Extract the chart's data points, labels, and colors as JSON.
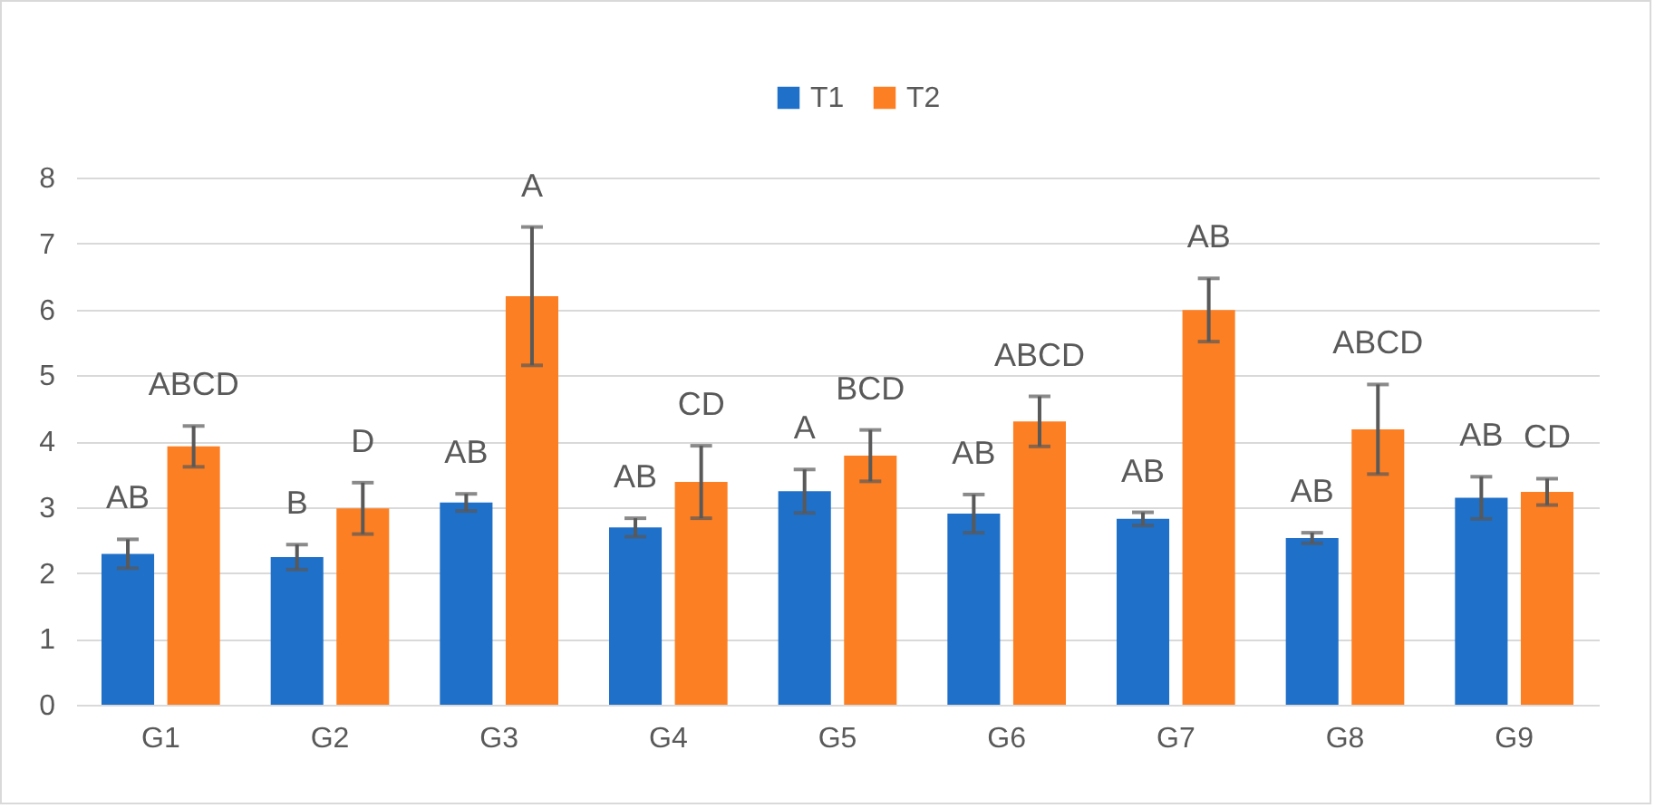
{
  "chart_data": {
    "type": "bar",
    "categories": [
      "G1",
      "G2",
      "G3",
      "G4",
      "G5",
      "G6",
      "G7",
      "G8",
      "G9"
    ],
    "series": [
      {
        "name": "T1",
        "color": "#1f70c8",
        "values": [
          2.29,
          2.24,
          3.07,
          2.69,
          3.24,
          2.9,
          2.82,
          2.53,
          3.14
        ],
        "errors": [
          0.22,
          0.19,
          0.13,
          0.14,
          0.33,
          0.29,
          0.1,
          0.08,
          0.32
        ]
      },
      {
        "name": "T2",
        "color": "#fd7f23",
        "values": [
          3.92,
          2.98,
          6.2,
          3.38,
          3.78,
          4.3,
          5.99,
          4.18,
          3.23
        ],
        "errors": [
          0.31,
          0.39,
          1.05,
          0.55,
          0.39,
          0.38,
          0.48,
          0.68,
          0.2
        ]
      }
    ],
    "ylim": [
      0,
      8
    ],
    "yticks": [
      0,
      1,
      2,
      3,
      4,
      5,
      6,
      7,
      8
    ],
    "grid": "y",
    "legend": "top",
    "annotations": [
      {
        "text": "AB",
        "x": "G1",
        "y": 2.29
      },
      {
        "text": "ABCD",
        "x": "G1",
        "y": 3.92
      },
      {
        "text": "B",
        "x": "G2",
        "y": 2.24
      },
      {
        "text": "D",
        "x": "G2",
        "y": 2.98
      },
      {
        "text": "AB",
        "x": "G3",
        "y": 3.07
      },
      {
        "text": "A",
        "x": "G3",
        "y": 6.2
      },
      {
        "text": "AB",
        "x": "G4",
        "y": 2.69
      },
      {
        "text": "CD",
        "x": "G4",
        "y": 3.38
      },
      {
        "text": "A",
        "x": "G5",
        "y": 3.24
      },
      {
        "text": "BCD",
        "x": "G5",
        "y": 3.78
      },
      {
        "text": "AB",
        "x": "G6",
        "y": 2.9
      },
      {
        "text": "ABCD",
        "x": "G6",
        "y": 4.3
      },
      {
        "text": "AB",
        "x": "G7",
        "y": 2.82
      },
      {
        "text": "AB",
        "x": "G7",
        "y": 5.99
      },
      {
        "text": "AB",
        "x": "G8",
        "y": 2.53
      },
      {
        "text": "ABCD",
        "x": "G8",
        "y": 4.18
      },
      {
        "text": "AB",
        "x": "G9",
        "y": 3.14
      },
      {
        "text": "CD",
        "x": "G9",
        "y": 3.23
      }
    ]
  }
}
